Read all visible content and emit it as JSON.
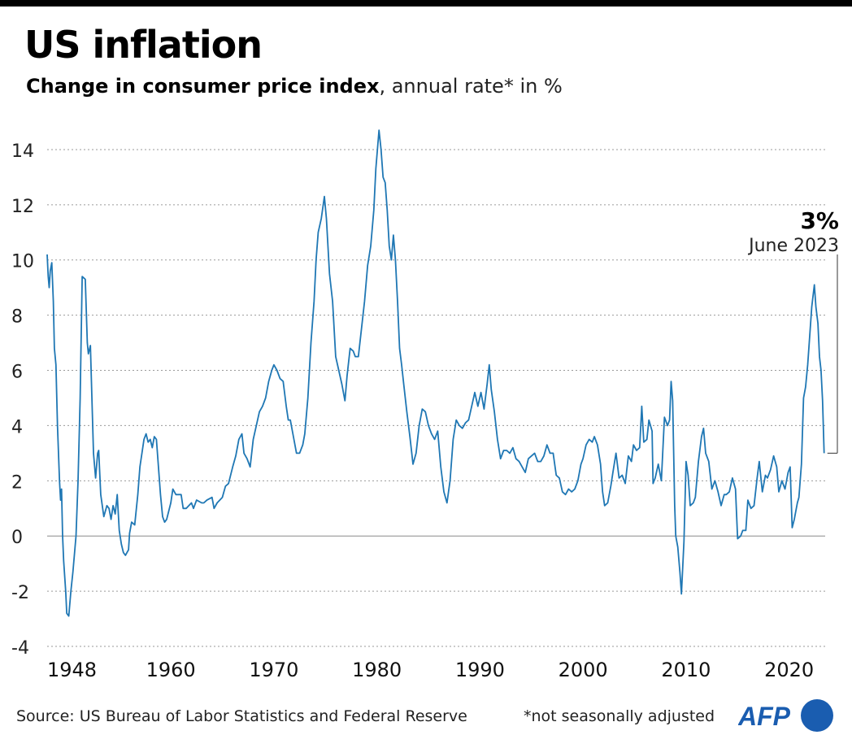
{
  "header": {
    "title": "US inflation",
    "subtitle_bold": "Change in consumer price index",
    "subtitle_light": ", annual rate* in %"
  },
  "footer": {
    "source": "Source: US Bureau of Labor Statistics and Federal Reserve",
    "note": "*not seasonally adjusted",
    "logo_text": "AFP"
  },
  "colors": {
    "line": "#1f77b4",
    "grid": "#9a9a9a",
    "zero": "#8a8a8a",
    "brand": "#1a5db0"
  },
  "chart_data": {
    "type": "line",
    "title": "US inflation",
    "ylabel": "",
    "xlabel": "",
    "ylim": [
      -4,
      15
    ],
    "xlim": [
      1948,
      2023.5
    ],
    "y_ticks": [
      "-4",
      "-2",
      "0",
      "2",
      "4",
      "6",
      "8",
      "10",
      "12",
      "14"
    ],
    "x_ticks": [
      "1948",
      "1960",
      "1970",
      "1980",
      "1990",
      "2000",
      "2010",
      "2020"
    ],
    "grid": "horizontal dotted",
    "annotation": {
      "value_label": "3%",
      "date_label": "June 2023",
      "x": 2023.4,
      "y": 3.0,
      "y_top": 10.2
    },
    "series": [
      {
        "points": [
          [
            1948.0,
            10.2
          ],
          [
            1948.1,
            9.4
          ],
          [
            1948.2,
            9.0
          ],
          [
            1948.3,
            9.6
          ],
          [
            1948.45,
            9.9
          ],
          [
            1948.6,
            8.5
          ],
          [
            1948.7,
            6.8
          ],
          [
            1948.85,
            6.2
          ],
          [
            1949.0,
            4.0
          ],
          [
            1949.2,
            2.0
          ],
          [
            1949.3,
            1.3
          ],
          [
            1949.4,
            1.7
          ],
          [
            1949.5,
            0.0
          ],
          [
            1949.6,
            -0.9
          ],
          [
            1949.8,
            -2.0
          ],
          [
            1949.9,
            -2.8
          ],
          [
            1950.1,
            -2.9
          ],
          [
            1950.3,
            -2.0
          ],
          [
            1950.5,
            -1.3
          ],
          [
            1950.8,
            0.0
          ],
          [
            1951.0,
            2.0
          ],
          [
            1951.2,
            5.0
          ],
          [
            1951.4,
            9.4
          ],
          [
            1951.7,
            9.3
          ],
          [
            1951.9,
            7.0
          ],
          [
            1952.0,
            6.6
          ],
          [
            1952.2,
            6.9
          ],
          [
            1952.5,
            3.0
          ],
          [
            1952.7,
            2.1
          ],
          [
            1952.9,
            3.0
          ],
          [
            1953.0,
            3.1
          ],
          [
            1953.2,
            1.5
          ],
          [
            1953.5,
            0.7
          ],
          [
            1953.8,
            1.1
          ],
          [
            1954.0,
            1.0
          ],
          [
            1954.2,
            0.6
          ],
          [
            1954.4,
            1.1
          ],
          [
            1954.6,
            0.8
          ],
          [
            1954.8,
            1.5
          ],
          [
            1955.0,
            0.2
          ],
          [
            1955.2,
            -0.3
          ],
          [
            1955.4,
            -0.6
          ],
          [
            1955.6,
            -0.7
          ],
          [
            1955.9,
            -0.5
          ],
          [
            1956.0,
            0.1
          ],
          [
            1956.2,
            0.5
          ],
          [
            1956.5,
            0.4
          ],
          [
            1956.8,
            1.5
          ],
          [
            1957.0,
            2.5
          ],
          [
            1957.2,
            3.0
          ],
          [
            1957.4,
            3.5
          ],
          [
            1957.6,
            3.7
          ],
          [
            1957.8,
            3.4
          ],
          [
            1958.0,
            3.5
          ],
          [
            1958.2,
            3.2
          ],
          [
            1958.4,
            3.6
          ],
          [
            1958.6,
            3.5
          ],
          [
            1958.8,
            2.5
          ],
          [
            1959.0,
            1.5
          ],
          [
            1959.2,
            0.7
          ],
          [
            1959.4,
            0.5
          ],
          [
            1959.6,
            0.6
          ],
          [
            1960.0,
            1.2
          ],
          [
            1960.2,
            1.7
          ],
          [
            1960.5,
            1.5
          ],
          [
            1960.8,
            1.5
          ],
          [
            1961.0,
            1.5
          ],
          [
            1961.2,
            1.0
          ],
          [
            1961.5,
            1.0
          ],
          [
            1962.0,
            1.2
          ],
          [
            1962.2,
            1.0
          ],
          [
            1962.5,
            1.3
          ],
          [
            1963.0,
            1.2
          ],
          [
            1963.2,
            1.2
          ],
          [
            1963.5,
            1.3
          ],
          [
            1964.0,
            1.4
          ],
          [
            1964.2,
            1.0
          ],
          [
            1964.5,
            1.2
          ],
          [
            1965.0,
            1.4
          ],
          [
            1965.3,
            1.8
          ],
          [
            1965.6,
            1.9
          ],
          [
            1966.0,
            2.5
          ],
          [
            1966.3,
            2.9
          ],
          [
            1966.6,
            3.5
          ],
          [
            1966.9,
            3.7
          ],
          [
            1967.1,
            3.0
          ],
          [
            1967.4,
            2.8
          ],
          [
            1967.7,
            2.5
          ],
          [
            1968.0,
            3.5
          ],
          [
            1968.3,
            4.0
          ],
          [
            1968.6,
            4.5
          ],
          [
            1968.9,
            4.7
          ],
          [
            1969.2,
            5.0
          ],
          [
            1969.5,
            5.6
          ],
          [
            1969.8,
            6.0
          ],
          [
            1970.0,
            6.2
          ],
          [
            1970.3,
            6.0
          ],
          [
            1970.6,
            5.7
          ],
          [
            1970.9,
            5.6
          ],
          [
            1971.2,
            4.7
          ],
          [
            1971.4,
            4.2
          ],
          [
            1971.6,
            4.2
          ],
          [
            1971.9,
            3.6
          ],
          [
            1972.2,
            3.0
          ],
          [
            1972.5,
            3.0
          ],
          [
            1972.8,
            3.3
          ],
          [
            1973.0,
            3.7
          ],
          [
            1973.3,
            5.0
          ],
          [
            1973.6,
            7.0
          ],
          [
            1973.9,
            8.5
          ],
          [
            1974.1,
            10.0
          ],
          [
            1974.3,
            11.0
          ],
          [
            1974.6,
            11.5
          ],
          [
            1974.9,
            12.3
          ],
          [
            1975.1,
            11.5
          ],
          [
            1975.4,
            9.5
          ],
          [
            1975.7,
            8.5
          ],
          [
            1976.0,
            6.5
          ],
          [
            1976.3,
            6.0
          ],
          [
            1976.6,
            5.5
          ],
          [
            1976.9,
            4.9
          ],
          [
            1977.1,
            5.8
          ],
          [
            1977.4,
            6.8
          ],
          [
            1977.7,
            6.7
          ],
          [
            1977.9,
            6.5
          ],
          [
            1978.2,
            6.5
          ],
          [
            1978.5,
            7.5
          ],
          [
            1978.8,
            8.5
          ],
          [
            1979.1,
            9.8
          ],
          [
            1979.4,
            10.5
          ],
          [
            1979.7,
            11.8
          ],
          [
            1979.9,
            13.3
          ],
          [
            1980.2,
            14.7
          ],
          [
            1980.4,
            14.0
          ],
          [
            1980.6,
            13.0
          ],
          [
            1980.8,
            12.8
          ],
          [
            1981.0,
            11.8
          ],
          [
            1981.2,
            10.5
          ],
          [
            1981.4,
            10.0
          ],
          [
            1981.6,
            10.9
          ],
          [
            1981.8,
            10.0
          ],
          [
            1982.0,
            8.5
          ],
          [
            1982.2,
            6.8
          ],
          [
            1982.4,
            6.2
          ],
          [
            1982.6,
            5.5
          ],
          [
            1982.9,
            4.5
          ],
          [
            1983.2,
            3.6
          ],
          [
            1983.5,
            2.6
          ],
          [
            1983.8,
            3.0
          ],
          [
            1984.1,
            4.0
          ],
          [
            1984.4,
            4.6
          ],
          [
            1984.7,
            4.5
          ],
          [
            1985.0,
            4.0
          ],
          [
            1985.3,
            3.7
          ],
          [
            1985.6,
            3.5
          ],
          [
            1985.9,
            3.8
          ],
          [
            1986.2,
            2.5
          ],
          [
            1986.5,
            1.6
          ],
          [
            1986.8,
            1.2
          ],
          [
            1987.1,
            2.0
          ],
          [
            1987.4,
            3.5
          ],
          [
            1987.7,
            4.2
          ],
          [
            1988.0,
            4.0
          ],
          [
            1988.3,
            3.9
          ],
          [
            1988.6,
            4.1
          ],
          [
            1988.9,
            4.2
          ],
          [
            1989.2,
            4.7
          ],
          [
            1989.5,
            5.2
          ],
          [
            1989.8,
            4.7
          ],
          [
            1990.1,
            5.2
          ],
          [
            1990.4,
            4.6
          ],
          [
            1990.7,
            5.5
          ],
          [
            1990.9,
            6.2
          ],
          [
            1991.1,
            5.3
          ],
          [
            1991.4,
            4.5
          ],
          [
            1991.7,
            3.5
          ],
          [
            1992.0,
            2.8
          ],
          [
            1992.3,
            3.1
          ],
          [
            1992.6,
            3.1
          ],
          [
            1992.9,
            3.0
          ],
          [
            1993.2,
            3.2
          ],
          [
            1993.5,
            2.8
          ],
          [
            1993.8,
            2.7
          ],
          [
            1994.1,
            2.5
          ],
          [
            1994.4,
            2.3
          ],
          [
            1994.7,
            2.8
          ],
          [
            1995.0,
            2.9
          ],
          [
            1995.3,
            3.0
          ],
          [
            1995.6,
            2.7
          ],
          [
            1995.9,
            2.7
          ],
          [
            1996.2,
            2.9
          ],
          [
            1996.5,
            3.3
          ],
          [
            1996.8,
            3.0
          ],
          [
            1997.1,
            3.0
          ],
          [
            1997.4,
            2.2
          ],
          [
            1997.7,
            2.1
          ],
          [
            1998.0,
            1.6
          ],
          [
            1998.3,
            1.5
          ],
          [
            1998.6,
            1.7
          ],
          [
            1998.9,
            1.6
          ],
          [
            1999.2,
            1.7
          ],
          [
            1999.5,
            2.0
          ],
          [
            1999.8,
            2.6
          ],
          [
            2000.0,
            2.8
          ],
          [
            2000.3,
            3.3
          ],
          [
            2000.6,
            3.5
          ],
          [
            2000.9,
            3.4
          ],
          [
            2001.1,
            3.6
          ],
          [
            2001.4,
            3.3
          ],
          [
            2001.7,
            2.6
          ],
          [
            2001.9,
            1.6
          ],
          [
            2002.1,
            1.1
          ],
          [
            2002.4,
            1.2
          ],
          [
            2002.7,
            1.8
          ],
          [
            2002.9,
            2.3
          ],
          [
            2003.2,
            3.0
          ],
          [
            2003.5,
            2.1
          ],
          [
            2003.8,
            2.2
          ],
          [
            2004.1,
            1.9
          ],
          [
            2004.4,
            2.9
          ],
          [
            2004.7,
            2.7
          ],
          [
            2004.9,
            3.3
          ],
          [
            2005.2,
            3.1
          ],
          [
            2005.5,
            3.2
          ],
          [
            2005.7,
            4.7
          ],
          [
            2005.9,
            3.4
          ],
          [
            2006.2,
            3.5
          ],
          [
            2006.4,
            4.2
          ],
          [
            2006.7,
            3.8
          ],
          [
            2006.8,
            1.9
          ],
          [
            2007.0,
            2.1
          ],
          [
            2007.3,
            2.6
          ],
          [
            2007.6,
            2.0
          ],
          [
            2007.9,
            4.3
          ],
          [
            2008.2,
            4.0
          ],
          [
            2008.4,
            4.2
          ],
          [
            2008.55,
            5.6
          ],
          [
            2008.7,
            4.9
          ],
          [
            2008.9,
            1.1
          ],
          [
            2009.0,
            0.0
          ],
          [
            2009.2,
            -0.4
          ],
          [
            2009.4,
            -1.3
          ],
          [
            2009.55,
            -2.1
          ],
          [
            2009.8,
            -0.2
          ],
          [
            2010.0,
            2.7
          ],
          [
            2010.2,
            2.2
          ],
          [
            2010.4,
            1.1
          ],
          [
            2010.7,
            1.2
          ],
          [
            2010.9,
            1.4
          ],
          [
            2011.2,
            2.7
          ],
          [
            2011.5,
            3.6
          ],
          [
            2011.7,
            3.9
          ],
          [
            2011.9,
            3.0
          ],
          [
            2012.2,
            2.7
          ],
          [
            2012.5,
            1.7
          ],
          [
            2012.8,
            2.0
          ],
          [
            2013.1,
            1.6
          ],
          [
            2013.4,
            1.1
          ],
          [
            2013.7,
            1.5
          ],
          [
            2013.9,
            1.5
          ],
          [
            2014.2,
            1.6
          ],
          [
            2014.5,
            2.1
          ],
          [
            2014.8,
            1.7
          ],
          [
            2015.0,
            -0.1
          ],
          [
            2015.3,
            0.0
          ],
          [
            2015.5,
            0.2
          ],
          [
            2015.8,
            0.2
          ],
          [
            2016.0,
            1.3
          ],
          [
            2016.3,
            1.0
          ],
          [
            2016.6,
            1.1
          ],
          [
            2016.9,
            2.1
          ],
          [
            2017.1,
            2.7
          ],
          [
            2017.4,
            1.6
          ],
          [
            2017.7,
            2.2
          ],
          [
            2017.9,
            2.1
          ],
          [
            2018.2,
            2.4
          ],
          [
            2018.5,
            2.9
          ],
          [
            2018.8,
            2.5
          ],
          [
            2019.0,
            1.6
          ],
          [
            2019.3,
            2.0
          ],
          [
            2019.6,
            1.7
          ],
          [
            2019.9,
            2.3
          ],
          [
            2020.1,
            2.5
          ],
          [
            2020.3,
            0.3
          ],
          [
            2020.5,
            0.6
          ],
          [
            2020.8,
            1.2
          ],
          [
            2020.95,
            1.4
          ],
          [
            2021.2,
            2.6
          ],
          [
            2021.4,
            5.0
          ],
          [
            2021.6,
            5.4
          ],
          [
            2021.8,
            6.2
          ],
          [
            2021.95,
            7.0
          ],
          [
            2022.2,
            8.3
          ],
          [
            2022.45,
            9.1
          ],
          [
            2022.6,
            8.3
          ],
          [
            2022.8,
            7.7
          ],
          [
            2022.95,
            6.5
          ],
          [
            2023.1,
            6.0
          ],
          [
            2023.25,
            4.9
          ],
          [
            2023.4,
            3.0
          ]
        ]
      }
    ]
  }
}
